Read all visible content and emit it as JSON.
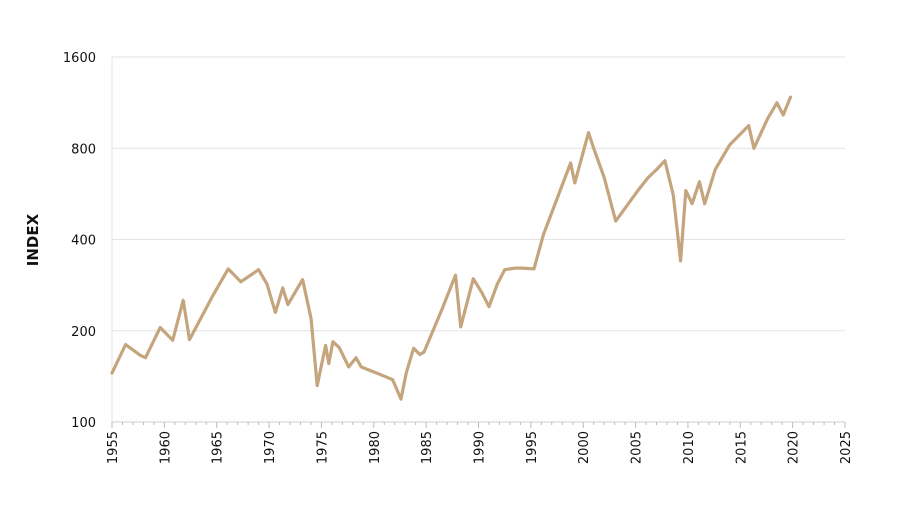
{
  "chart_data": {
    "type": "line",
    "title": "",
    "xlabel": "",
    "ylabel": "INDEX",
    "xlim": [
      1955,
      2025
    ],
    "ylim": [
      100,
      1600
    ],
    "y_scale": "log2",
    "grid": "horizontal",
    "line_color": "#c4a57d",
    "x_ticks": [
      "1955",
      "1960",
      "1965",
      "1970",
      "1975",
      "1980",
      "1985",
      "1990",
      "1995",
      "2000",
      "2005",
      "2010",
      "2015",
      "2020",
      "2025"
    ],
    "y_ticks": [
      "100",
      "200",
      "400",
      "800",
      "1600"
    ],
    "series": [
      {
        "x": [
          1955.0,
          1956.3,
          1957.7,
          1958.2,
          1959.6,
          1960.8,
          1961.8,
          1962.4,
          1964.6,
          1966.1,
          1967.3,
          1969.0,
          1969.8,
          1970.6,
          1971.3,
          1971.8,
          1973.2,
          1974.0,
          1974.6,
          1975.4,
          1975.7,
          1976.1,
          1976.7,
          1977.6,
          1978.3,
          1978.8,
          1979.2,
          1980.5,
          1981.8,
          1982.6,
          1983.1,
          1983.8,
          1984.4,
          1984.8,
          1986.5,
          1987.8,
          1988.3,
          1989.5,
          1990.3,
          1991.0,
          1991.8,
          1992.5,
          1993.5,
          1994.2,
          1995.3,
          1996.2,
          1998.8,
          1999.2,
          2000.5,
          2001.0,
          2002.0,
          2003.1,
          2005.3,
          2006.2,
          2007.0,
          2007.8,
          2008.6,
          2009.3,
          2009.8,
          2010.4,
          2011.1,
          2011.6,
          2012.6,
          2014.0,
          2015.8,
          2016.3,
          2017.6,
          2018.5,
          2019.1,
          2019.8
        ],
        "y": [
          145,
          180,
          166,
          163,
          205,
          186,
          252,
          187,
          260,
          320,
          290,
          318,
          285,
          230,
          277,
          244,
          295,
          220,
          132,
          179,
          156,
          184,
          176,
          152,
          163,
          152,
          150,
          144,
          138,
          119,
          145,
          175,
          167,
          170,
          235,
          305,
          206,
          297,
          268,
          240,
          285,
          318,
          322,
          322,
          320,
          415,
          715,
          615,
          900,
          800,
          640,
          460,
          585,
          640,
          680,
          728,
          560,
          340,
          580,
          525,
          620,
          525,
          680,
          822,
          950,
          800,
          1000,
          1130,
          1030,
          1180
        ]
      }
    ]
  }
}
